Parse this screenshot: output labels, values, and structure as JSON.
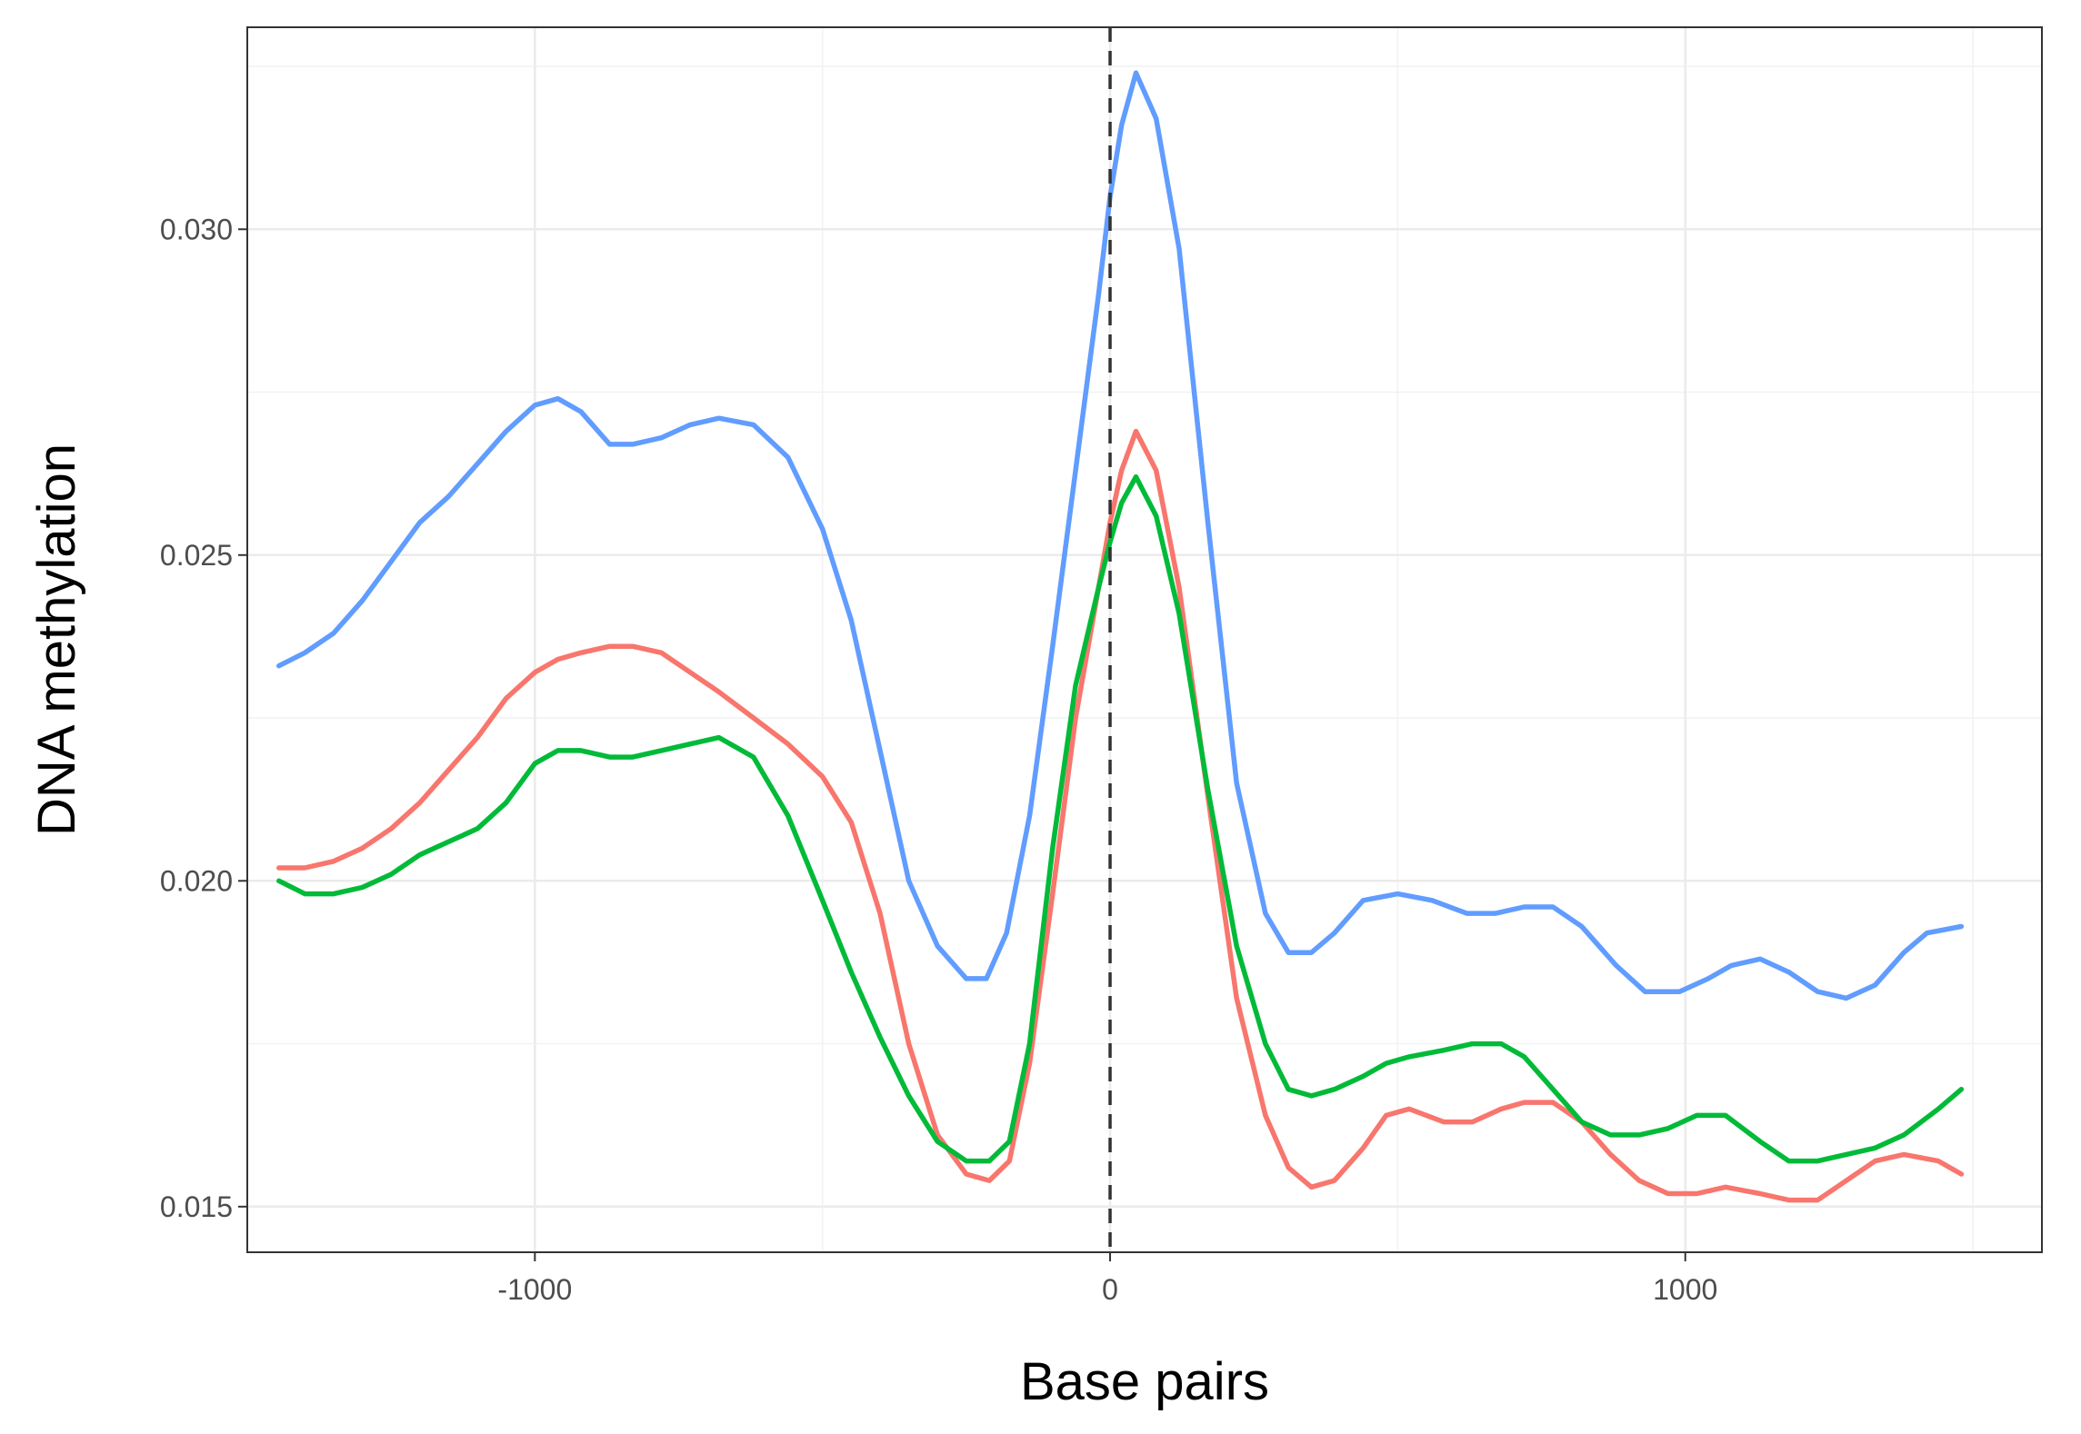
{
  "chart_data": {
    "type": "line",
    "title": "",
    "xlabel": "Base pairs",
    "ylabel": "DNA methylation",
    "xlim": [
      -1500,
      1620
    ],
    "ylim": [
      0.0143,
      0.0331
    ],
    "x_ticks": [
      -1000,
      0,
      1000
    ],
    "x_tick_labels": [
      "-1000",
      "0",
      "1000"
    ],
    "y_ticks": [
      0.015,
      0.02,
      0.025,
      0.03
    ],
    "y_tick_labels": [
      "0.015",
      "0.020",
      "0.025",
      "0.030"
    ],
    "grid": true,
    "legend": "none",
    "reference_line": {
      "x": 0,
      "style": "dashed",
      "color": "#333333"
    },
    "series": [
      {
        "color": "#619CFF",
        "x": [
          -1445,
          -1400,
          -1350,
          -1300,
          -1250,
          -1200,
          -1150,
          -1100,
          -1050,
          -1000,
          -960,
          -920,
          -870,
          -830,
          -780,
          -730,
          -680,
          -620,
          -560,
          -500,
          -450,
          -400,
          -350,
          -300,
          -250,
          -215,
          -180,
          -140,
          -100,
          -60,
          -20,
          0,
          20,
          45,
          80,
          120,
          170,
          220,
          270,
          310,
          350,
          390,
          440,
          500,
          560,
          620,
          670,
          720,
          770,
          820,
          880,
          930,
          990,
          1040,
          1080,
          1130,
          1180,
          1230,
          1280,
          1330,
          1380,
          1420,
          1480
        ],
        "y": [
          0.0233,
          0.0235,
          0.0238,
          0.0243,
          0.0249,
          0.0255,
          0.0259,
          0.0264,
          0.0269,
          0.0273,
          0.0274,
          0.0272,
          0.0267,
          0.0267,
          0.0268,
          0.027,
          0.0271,
          0.027,
          0.0265,
          0.0254,
          0.024,
          0.022,
          0.02,
          0.019,
          0.0185,
          0.0185,
          0.0192,
          0.021,
          0.0236,
          0.0263,
          0.029,
          0.0305,
          0.0316,
          0.0324,
          0.0317,
          0.0297,
          0.0255,
          0.0215,
          0.0195,
          0.0189,
          0.0189,
          0.0192,
          0.0197,
          0.0198,
          0.0197,
          0.0195,
          0.0195,
          0.0196,
          0.0196,
          0.0193,
          0.0187,
          0.0183,
          0.0183,
          0.0185,
          0.0187,
          0.0188,
          0.0186,
          0.0183,
          0.0182,
          0.0184,
          0.0189,
          0.0192,
          0.0193
        ]
      },
      {
        "color": "#F8766D",
        "x": [
          -1445,
          -1400,
          -1350,
          -1300,
          -1250,
          -1200,
          -1150,
          -1100,
          -1050,
          -1000,
          -960,
          -920,
          -870,
          -830,
          -780,
          -730,
          -680,
          -620,
          -560,
          -500,
          -450,
          -400,
          -350,
          -300,
          -250,
          -210,
          -175,
          -140,
          -100,
          -60,
          -20,
          0,
          20,
          45,
          80,
          120,
          170,
          220,
          270,
          310,
          350,
          390,
          440,
          480,
          520,
          580,
          630,
          680,
          720,
          770,
          820,
          870,
          920,
          970,
          1020,
          1070,
          1130,
          1180,
          1230,
          1280,
          1330,
          1380,
          1440,
          1480
        ],
        "y": [
          0.0202,
          0.0202,
          0.0203,
          0.0205,
          0.0208,
          0.0212,
          0.0217,
          0.0222,
          0.0228,
          0.0232,
          0.0234,
          0.0235,
          0.0236,
          0.0236,
          0.0235,
          0.0232,
          0.0229,
          0.0225,
          0.0221,
          0.0216,
          0.0209,
          0.0195,
          0.0175,
          0.0161,
          0.0155,
          0.0154,
          0.0157,
          0.0172,
          0.0198,
          0.0225,
          0.0245,
          0.0255,
          0.0263,
          0.0269,
          0.0263,
          0.0245,
          0.0213,
          0.0182,
          0.0164,
          0.0156,
          0.0153,
          0.0154,
          0.0159,
          0.0164,
          0.0165,
          0.0163,
          0.0163,
          0.0165,
          0.0166,
          0.0166,
          0.0163,
          0.0158,
          0.0154,
          0.0152,
          0.0152,
          0.0153,
          0.0152,
          0.0151,
          0.0151,
          0.0154,
          0.0157,
          0.0158,
          0.0157,
          0.0155
        ]
      },
      {
        "color": "#00BA38",
        "x": [
          -1445,
          -1400,
          -1350,
          -1300,
          -1250,
          -1200,
          -1150,
          -1100,
          -1050,
          -1000,
          -960,
          -920,
          -870,
          -830,
          -780,
          -730,
          -680,
          -620,
          -560,
          -500,
          -450,
          -400,
          -350,
          -300,
          -250,
          -210,
          -175,
          -140,
          -100,
          -60,
          -20,
          0,
          20,
          45,
          80,
          120,
          170,
          220,
          270,
          310,
          350,
          390,
          440,
          480,
          520,
          580,
          630,
          680,
          720,
          770,
          820,
          870,
          920,
          970,
          1020,
          1070,
          1130,
          1180,
          1230,
          1280,
          1330,
          1380,
          1440,
          1480
        ],
        "y": [
          0.02,
          0.0198,
          0.0198,
          0.0199,
          0.0201,
          0.0204,
          0.0206,
          0.0208,
          0.0212,
          0.0218,
          0.022,
          0.022,
          0.0219,
          0.0219,
          0.022,
          0.0221,
          0.0222,
          0.0219,
          0.021,
          0.0197,
          0.0186,
          0.0176,
          0.0167,
          0.016,
          0.0157,
          0.0157,
          0.016,
          0.0175,
          0.0205,
          0.023,
          0.0245,
          0.0252,
          0.0258,
          0.0262,
          0.0256,
          0.0241,
          0.0214,
          0.019,
          0.0175,
          0.0168,
          0.0167,
          0.0168,
          0.017,
          0.0172,
          0.0173,
          0.0174,
          0.0175,
          0.0175,
          0.0173,
          0.0168,
          0.0163,
          0.0161,
          0.0161,
          0.0162,
          0.0164,
          0.0164,
          0.016,
          0.0157,
          0.0157,
          0.0158,
          0.0159,
          0.0161,
          0.0165,
          0.0168
        ]
      }
    ]
  }
}
